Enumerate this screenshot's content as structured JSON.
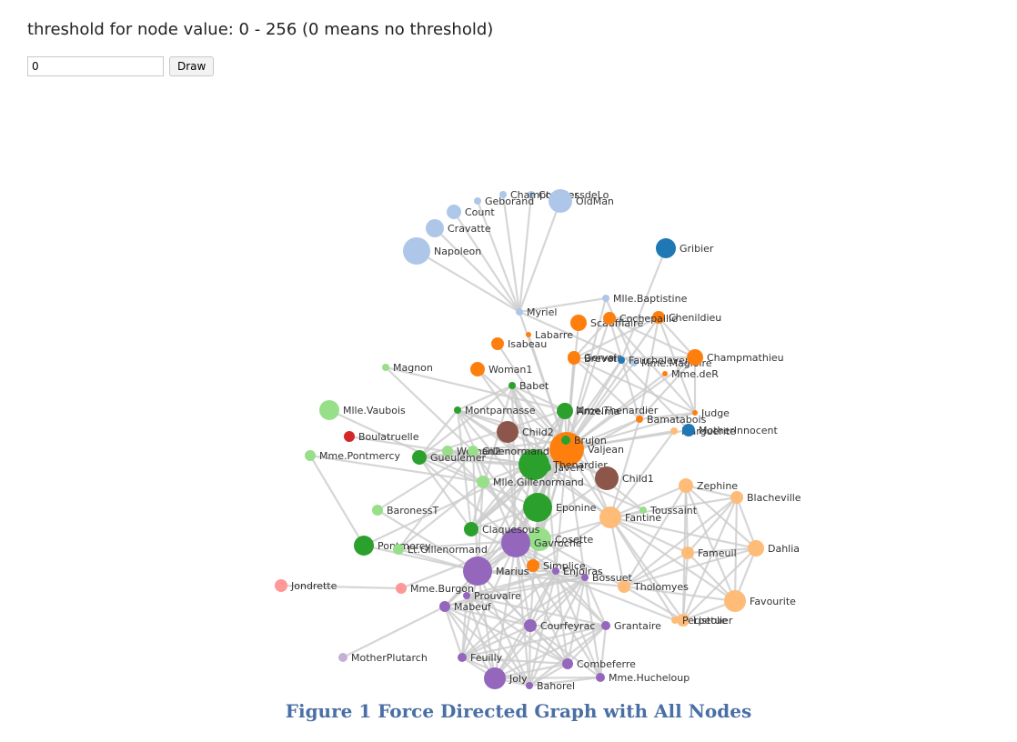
{
  "header": {
    "text": "threshold for node value: 0 - 256  (0 means no threshold)"
  },
  "controls": {
    "input_value": "0",
    "draw_label": "Draw"
  },
  "caption": "Figure 1 Force Directed Graph with All Nodes",
  "colors": {
    "group1": "#1f77b4",
    "group2": "#aec7e8",
    "group3": "#ff7f0e",
    "group4": "#ffbb78",
    "group5": "#2ca02c",
    "group6": "#98df8a",
    "group7": "#d62728",
    "group8": "#ff9896",
    "group9": "#9467bd",
    "group10": "#c5b0d5",
    "group11": "#8c564b",
    "edge": "#cccccc"
  },
  "graph": {
    "nodes": [
      {
        "name": "Myriel",
        "group": 1
      },
      {
        "name": "Napoleon",
        "group": 1
      },
      {
        "name": "Mlle.Baptistine",
        "group": 1
      },
      {
        "name": "Mme.Magloire",
        "group": 1
      },
      {
        "name": "CountessdeLo",
        "group": 1
      },
      {
        "name": "Geborand",
        "group": 1
      },
      {
        "name": "Champtercier",
        "group": 1
      },
      {
        "name": "Cravatte",
        "group": 1
      },
      {
        "name": "Count",
        "group": 1
      },
      {
        "name": "OldMan",
        "group": 1
      },
      {
        "name": "Labarre",
        "group": 2
      },
      {
        "name": "Valjean",
        "group": 2
      },
      {
        "name": "Marguerite",
        "group": 3
      },
      {
        "name": "Mme.deR",
        "group": 2
      },
      {
        "name": "Isabeau",
        "group": 2
      },
      {
        "name": "Gervais",
        "group": 2
      },
      {
        "name": "Tholomyes",
        "group": 3
      },
      {
        "name": "Listolier",
        "group": 3
      },
      {
        "name": "Fameuil",
        "group": 3
      },
      {
        "name": "Blacheville",
        "group": 3
      },
      {
        "name": "Favourite",
        "group": 3
      },
      {
        "name": "Dahlia",
        "group": 3
      },
      {
        "name": "Zephine",
        "group": 3
      },
      {
        "name": "Fantine",
        "group": 3
      },
      {
        "name": "Mme.Thenardier",
        "group": 4
      },
      {
        "name": "Thenardier",
        "group": 4
      },
      {
        "name": "Cosette",
        "group": 5
      },
      {
        "name": "Javert",
        "group": 4
      },
      {
        "name": "Fauchelevent",
        "group": 0
      },
      {
        "name": "Bamatabois",
        "group": 2
      },
      {
        "name": "Perpetue",
        "group": 3
      },
      {
        "name": "Simplice",
        "group": 2
      },
      {
        "name": "Scaufflaire",
        "group": 2
      },
      {
        "name": "Woman1",
        "group": 2
      },
      {
        "name": "Judge",
        "group": 2
      },
      {
        "name": "Champmathieu",
        "group": 2
      },
      {
        "name": "Brevet",
        "group": 2
      },
      {
        "name": "Chenildieu",
        "group": 2
      },
      {
        "name": "Cochepaille",
        "group": 2
      },
      {
        "name": "Pontmercy",
        "group": 4
      },
      {
        "name": "Boulatruelle",
        "group": 6
      },
      {
        "name": "Eponine",
        "group": 4
      },
      {
        "name": "Anzelma",
        "group": 4
      },
      {
        "name": "Woman2",
        "group": 5
      },
      {
        "name": "MotherInnocent",
        "group": 0
      },
      {
        "name": "Gribier",
        "group": 0
      },
      {
        "name": "Jondrette",
        "group": 7
      },
      {
        "name": "Mme.Burgon",
        "group": 7
      },
      {
        "name": "Gavroche",
        "group": 8
      },
      {
        "name": "Gillenormand",
        "group": 5
      },
      {
        "name": "Magnon",
        "group": 5
      },
      {
        "name": "Mlle.Gillenormand",
        "group": 5
      },
      {
        "name": "Mme.Pontmercy",
        "group": 5
      },
      {
        "name": "Mlle.Vaubois",
        "group": 5
      },
      {
        "name": "Lt.Gillenormand",
        "group": 5
      },
      {
        "name": "Marius",
        "group": 8
      },
      {
        "name": "BaronessT",
        "group": 5
      },
      {
        "name": "Mabeuf",
        "group": 8
      },
      {
        "name": "Enjolras",
        "group": 8
      },
      {
        "name": "Combeferre",
        "group": 8
      },
      {
        "name": "Prouvaire",
        "group": 8
      },
      {
        "name": "Feuilly",
        "group": 8
      },
      {
        "name": "Courfeyrac",
        "group": 8
      },
      {
        "name": "Bahorel",
        "group": 8
      },
      {
        "name": "Bossuet",
        "group": 8
      },
      {
        "name": "Joly",
        "group": 8
      },
      {
        "name": "Grantaire",
        "group": 8
      },
      {
        "name": "MotherPlutarch",
        "group": 9
      },
      {
        "name": "Gueulemer",
        "group": 4
      },
      {
        "name": "Babet",
        "group": 4
      },
      {
        "name": "Claquesous",
        "group": 4
      },
      {
        "name": "Montparnasse",
        "group": 4
      },
      {
        "name": "Toussaint",
        "group": 5
      },
      {
        "name": "Child1",
        "group": 10
      },
      {
        "name": "Child2",
        "group": 10
      },
      {
        "name": "Brujon",
        "group": 4
      },
      {
        "name": "Mme.Hucheloup",
        "group": 8
      }
    ],
    "links": [
      [
        1,
        0
      ],
      [
        2,
        0
      ],
      [
        3,
        0
      ],
      [
        3,
        2
      ],
      [
        4,
        0
      ],
      [
        5,
        0
      ],
      [
        6,
        0
      ],
      [
        7,
        0
      ],
      [
        8,
        0
      ],
      [
        9,
        0
      ],
      [
        11,
        10
      ],
      [
        11,
        3
      ],
      [
        11,
        2
      ],
      [
        11,
        0
      ],
      [
        12,
        11
      ],
      [
        13,
        11
      ],
      [
        14,
        11
      ],
      [
        15,
        11
      ],
      [
        17,
        16
      ],
      [
        18,
        16
      ],
      [
        18,
        17
      ],
      [
        19,
        16
      ],
      [
        19,
        17
      ],
      [
        19,
        18
      ],
      [
        20,
        16
      ],
      [
        20,
        17
      ],
      [
        20,
        18
      ],
      [
        20,
        19
      ],
      [
        21,
        16
      ],
      [
        21,
        17
      ],
      [
        21,
        18
      ],
      [
        21,
        19
      ],
      [
        21,
        20
      ],
      [
        22,
        16
      ],
      [
        22,
        17
      ],
      [
        22,
        18
      ],
      [
        22,
        19
      ],
      [
        22,
        20
      ],
      [
        22,
        21
      ],
      [
        23,
        16
      ],
      [
        23,
        17
      ],
      [
        23,
        18
      ],
      [
        23,
        19
      ],
      [
        23,
        20
      ],
      [
        23,
        21
      ],
      [
        23,
        22
      ],
      [
        23,
        12
      ],
      [
        23,
        11
      ],
      [
        24,
        23
      ],
      [
        24,
        11
      ],
      [
        25,
        24
      ],
      [
        25,
        23
      ],
      [
        25,
        11
      ],
      [
        26,
        24
      ],
      [
        26,
        11
      ],
      [
        26,
        16
      ],
      [
        26,
        25
      ],
      [
        27,
        11
      ],
      [
        27,
        23
      ],
      [
        27,
        25
      ],
      [
        27,
        24
      ],
      [
        27,
        26
      ],
      [
        28,
        11
      ],
      [
        28,
        27
      ],
      [
        29,
        23
      ],
      [
        29,
        27
      ],
      [
        29,
        11
      ],
      [
        30,
        23
      ],
      [
        31,
        30
      ],
      [
        31,
        11
      ],
      [
        31,
        23
      ],
      [
        31,
        27
      ],
      [
        32,
        11
      ],
      [
        33,
        11
      ],
      [
        33,
        27
      ],
      [
        34,
        11
      ],
      [
        34,
        29
      ],
      [
        35,
        11
      ],
      [
        35,
        34
      ],
      [
        35,
        29
      ],
      [
        36,
        34
      ],
      [
        36,
        35
      ],
      [
        36,
        11
      ],
      [
        36,
        29
      ],
      [
        37,
        34
      ],
      [
        37,
        35
      ],
      [
        37,
        36
      ],
      [
        37,
        11
      ],
      [
        37,
        29
      ],
      [
        38,
        34
      ],
      [
        38,
        35
      ],
      [
        38,
        36
      ],
      [
        38,
        37
      ],
      [
        38,
        11
      ],
      [
        38,
        29
      ],
      [
        39,
        25
      ],
      [
        40,
        25
      ],
      [
        41,
        24
      ],
      [
        41,
        25
      ],
      [
        42,
        41
      ],
      [
        42,
        25
      ],
      [
        42,
        24
      ],
      [
        43,
        11
      ],
      [
        43,
        26
      ],
      [
        43,
        27
      ],
      [
        44,
        28
      ],
      [
        44,
        11
      ],
      [
        45,
        28
      ],
      [
        47,
        46
      ],
      [
        48,
        47
      ],
      [
        48,
        25
      ],
      [
        48,
        27
      ],
      [
        48,
        11
      ],
      [
        49,
        26
      ],
      [
        49,
        11
      ],
      [
        50,
        49
      ],
      [
        50,
        24
      ],
      [
        51,
        49
      ],
      [
        51,
        26
      ],
      [
        51,
        11
      ],
      [
        52,
        51
      ],
      [
        52,
        39
      ],
      [
        53,
        51
      ],
      [
        54,
        51
      ],
      [
        54,
        49
      ],
      [
        54,
        26
      ],
      [
        55,
        51
      ],
      [
        55,
        49
      ],
      [
        55,
        39
      ],
      [
        55,
        54
      ],
      [
        55,
        26
      ],
      [
        55,
        11
      ],
      [
        55,
        16
      ],
      [
        55,
        25
      ],
      [
        55,
        41
      ],
      [
        55,
        48
      ],
      [
        56,
        49
      ],
      [
        56,
        55
      ],
      [
        57,
        55
      ],
      [
        57,
        41
      ],
      [
        57,
        48
      ],
      [
        58,
        55
      ],
      [
        58,
        48
      ],
      [
        58,
        27
      ],
      [
        58,
        57
      ],
      [
        58,
        11
      ],
      [
        59,
        58
      ],
      [
        59,
        55
      ],
      [
        59,
        48
      ],
      [
        59,
        57
      ],
      [
        60,
        48
      ],
      [
        60,
        58
      ],
      [
        60,
        59
      ],
      [
        61,
        48
      ],
      [
        61,
        58
      ],
      [
        61,
        60
      ],
      [
        61,
        59
      ],
      [
        61,
        57
      ],
      [
        61,
        55
      ],
      [
        62,
        55
      ],
      [
        62,
        58
      ],
      [
        62,
        59
      ],
      [
        62,
        48
      ],
      [
        62,
        57
      ],
      [
        62,
        41
      ],
      [
        62,
        61
      ],
      [
        62,
        60
      ],
      [
        63,
        59
      ],
      [
        63,
        48
      ],
      [
        63,
        62
      ],
      [
        63,
        57
      ],
      [
        63,
        58
      ],
      [
        63,
        61
      ],
      [
        63,
        60
      ],
      [
        63,
        55
      ],
      [
        64,
        55
      ],
      [
        64,
        62
      ],
      [
        64,
        48
      ],
      [
        64,
        63
      ],
      [
        64,
        58
      ],
      [
        64,
        61
      ],
      [
        64,
        60
      ],
      [
        64,
        59
      ],
      [
        64,
        57
      ],
      [
        64,
        11
      ],
      [
        65,
        63
      ],
      [
        65,
        64
      ],
      [
        65,
        48
      ],
      [
        65,
        62
      ],
      [
        65,
        58
      ],
      [
        65,
        61
      ],
      [
        65,
        60
      ],
      [
        65,
        59
      ],
      [
        65,
        57
      ],
      [
        65,
        55
      ],
      [
        66,
        64
      ],
      [
        66,
        58
      ],
      [
        66,
        59
      ],
      [
        66,
        62
      ],
      [
        66,
        65
      ],
      [
        66,
        48
      ],
      [
        66,
        63
      ],
      [
        66,
        61
      ],
      [
        66,
        60
      ],
      [
        67,
        57
      ],
      [
        68,
        25
      ],
      [
        68,
        11
      ],
      [
        68,
        24
      ],
      [
        68,
        27
      ],
      [
        68,
        48
      ],
      [
        68,
        41
      ],
      [
        69,
        25
      ],
      [
        69,
        68
      ],
      [
        69,
        11
      ],
      [
        69,
        24
      ],
      [
        69,
        27
      ],
      [
        69,
        48
      ],
      [
        69,
        41
      ],
      [
        70,
        25
      ],
      [
        70,
        69
      ],
      [
        70,
        68
      ],
      [
        70,
        11
      ],
      [
        70,
        24
      ],
      [
        70,
        27
      ],
      [
        70,
        41
      ],
      [
        70,
        58
      ],
      [
        71,
        27
      ],
      [
        71,
        69
      ],
      [
        71,
        68
      ],
      [
        71,
        70
      ],
      [
        71,
        11
      ],
      [
        71,
        48
      ],
      [
        71,
        41
      ],
      [
        71,
        25
      ],
      [
        72,
        26
      ],
      [
        72,
        27
      ],
      [
        72,
        11
      ],
      [
        73,
        48
      ],
      [
        74,
        48
      ],
      [
        74,
        73
      ],
      [
        75,
        69
      ],
      [
        75,
        68
      ],
      [
        75,
        25
      ],
      [
        75,
        48
      ],
      [
        75,
        41
      ],
      [
        75,
        70
      ],
      [
        75,
        71
      ],
      [
        76,
        64
      ],
      [
        76,
        65
      ],
      [
        76,
        66
      ],
      [
        76,
        63
      ],
      [
        76,
        62
      ],
      [
        76,
        48
      ],
      [
        76,
        58
      ]
    ]
  }
}
